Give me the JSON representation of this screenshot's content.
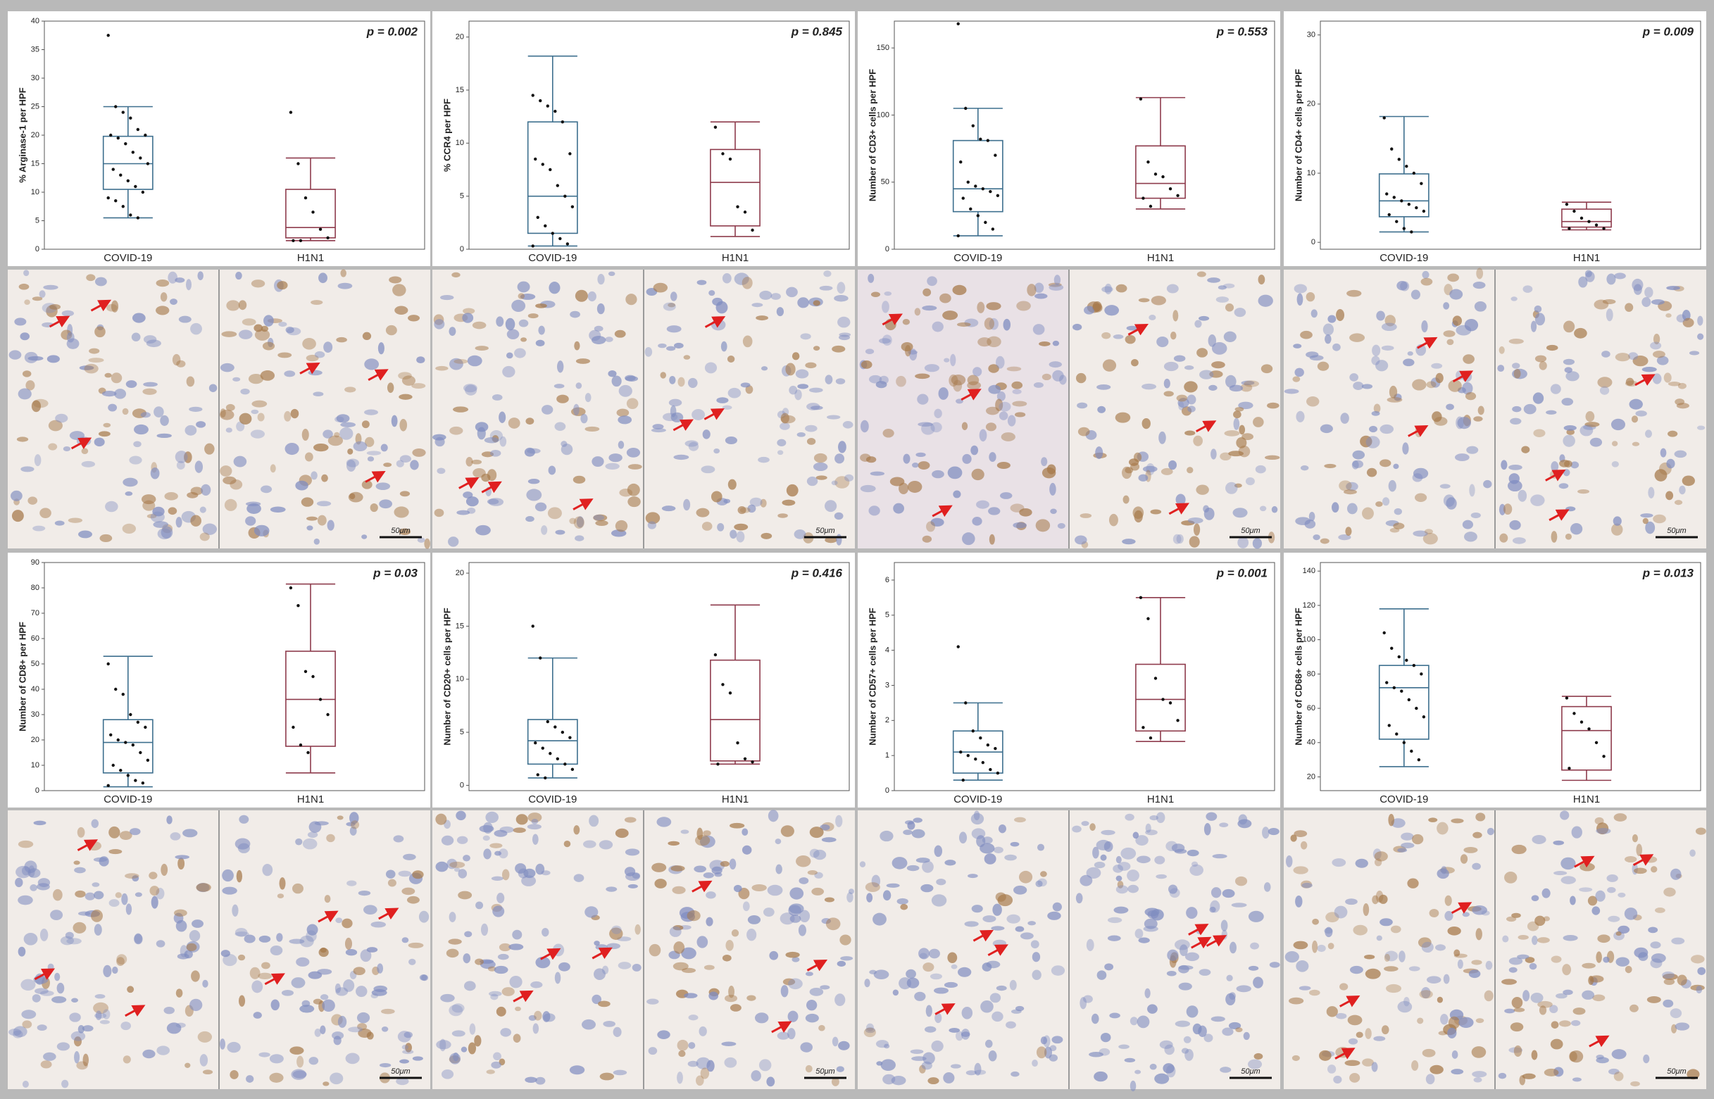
{
  "chart_data": [
    {
      "type": "box",
      "y_label": "% Arginase-1 per HPF",
      "annotation": "p = 0.002",
      "categories": [
        "COVID-19",
        "H1N1"
      ],
      "ylim": [
        0,
        40
      ],
      "yticks": [
        0,
        5,
        10,
        15,
        20,
        25,
        30,
        35,
        40
      ],
      "boxes": [
        {
          "color": "#3d6f8e",
          "min": 5.5,
          "q1": 10.5,
          "median": 15,
          "q3": 19.8,
          "max": 25,
          "points": [
            37.5,
            25,
            24,
            23,
            21,
            20,
            20,
            19.5,
            18.5,
            17,
            16,
            15,
            14,
            13,
            12,
            11,
            10,
            9,
            8.5,
            7.5,
            6,
            5.5
          ]
        },
        {
          "color": "#8e3b4c",
          "min": 1.5,
          "q1": 2,
          "median": 3.8,
          "q3": 10.5,
          "max": 16,
          "points": [
            24,
            15,
            9,
            6.5,
            3.5,
            2,
            1.5,
            1.5
          ]
        }
      ]
    },
    {
      "type": "box",
      "y_label": "% CCR4 per HPF",
      "annotation": "p = 0.845",
      "categories": [
        "COVID-19",
        "H1N1"
      ],
      "ylim": [
        0,
        21.5
      ],
      "yticks": [
        0,
        5,
        10,
        15,
        20
      ],
      "boxes": [
        {
          "color": "#3d6f8e",
          "min": 0.3,
          "q1": 1.5,
          "median": 5,
          "q3": 12,
          "max": 18.2,
          "points": [
            14.5,
            14,
            13.5,
            13,
            12,
            9,
            8.5,
            8,
            7.5,
            6,
            5,
            4,
            3,
            2.2,
            1.5,
            1,
            0.5,
            0.3
          ]
        },
        {
          "color": "#8e3b4c",
          "min": 1.2,
          "q1": 2.2,
          "median": 6.3,
          "q3": 9.4,
          "max": 12,
          "points": [
            11.5,
            9,
            8.5,
            4,
            3.5,
            1.8
          ]
        }
      ]
    },
    {
      "type": "box",
      "y_label": "Number of CD3+ cells per HPF",
      "annotation": "p = 0.553",
      "categories": [
        "COVID-19",
        "H1N1"
      ],
      "ylim": [
        0,
        170
      ],
      "yticks": [
        0,
        50,
        100,
        150
      ],
      "boxes": [
        {
          "color": "#3d6f8e",
          "min": 10,
          "q1": 28,
          "median": 45,
          "q3": 81,
          "max": 105,
          "points": [
            168,
            105,
            92,
            82,
            81,
            70,
            65,
            50,
            47,
            45,
            43,
            40,
            38,
            30,
            25,
            20,
            15,
            10
          ]
        },
        {
          "color": "#8e3b4c",
          "min": 30,
          "q1": 38,
          "median": 49,
          "q3": 77,
          "max": 113,
          "points": [
            112,
            65,
            56,
            54,
            45,
            40,
            38,
            32
          ]
        }
      ]
    },
    {
      "type": "box",
      "y_label": "Number of CD4+ cells per HPF",
      "annotation": "p = 0.009",
      "categories": [
        "COVID-19",
        "H1N1"
      ],
      "ylim": [
        -1,
        32
      ],
      "yticks": [
        0,
        10,
        20,
        30
      ],
      "boxes": [
        {
          "color": "#3d6f8e",
          "min": 1.5,
          "q1": 3.7,
          "median": 6,
          "q3": 9.9,
          "max": 18.2,
          "points": [
            18,
            13.5,
            12,
            11,
            10,
            8.5,
            7,
            6.5,
            6,
            5.5,
            5,
            4.5,
            4,
            3,
            2,
            1.5
          ]
        },
        {
          "color": "#8e3b4c",
          "min": 1.8,
          "q1": 2.2,
          "median": 3,
          "q3": 4.8,
          "max": 5.8,
          "points": [
            5.5,
            4.5,
            3.5,
            3,
            2.5,
            2,
            2
          ]
        }
      ]
    },
    {
      "type": "box",
      "y_label": "Number of CD8+ per HPF",
      "annotation": "p = 0.03",
      "categories": [
        "COVID-19",
        "H1N1"
      ],
      "ylim": [
        0,
        90
      ],
      "yticks": [
        0,
        10,
        20,
        30,
        40,
        50,
        60,
        70,
        80,
        90
      ],
      "boxes": [
        {
          "color": "#3d6f8e",
          "min": 1.5,
          "q1": 7,
          "median": 19,
          "q3": 28,
          "max": 53,
          "points": [
            50,
            40,
            38,
            30,
            27,
            25,
            22,
            20,
            19,
            18,
            15,
            12,
            10,
            8,
            6,
            4,
            3,
            2
          ]
        },
        {
          "color": "#8e3b4c",
          "min": 7,
          "q1": 17.5,
          "median": 36,
          "q3": 55,
          "max": 81.5,
          "points": [
            80,
            73,
            47,
            45,
            36,
            30,
            25,
            18,
            15
          ]
        }
      ]
    },
    {
      "type": "box",
      "y_label": "Number of CD20+ cells per HPF",
      "annotation": "p = 0.416",
      "categories": [
        "COVID-19",
        "H1N1"
      ],
      "ylim": [
        -0.5,
        21
      ],
      "yticks": [
        0,
        5,
        10,
        15,
        20
      ],
      "boxes": [
        {
          "color": "#3d6f8e",
          "min": 0.7,
          "q1": 2,
          "median": 4.2,
          "q3": 6.2,
          "max": 12,
          "points": [
            15,
            12,
            6,
            5.5,
            5,
            4.5,
            4,
            3.5,
            3,
            2.5,
            2,
            1.5,
            1,
            0.7
          ]
        },
        {
          "color": "#8e3b4c",
          "min": 2,
          "q1": 2.3,
          "median": 6.2,
          "q3": 11.8,
          "max": 17,
          "points": [
            12.3,
            9.5,
            8.7,
            4,
            2.5,
            2.2,
            2
          ]
        }
      ]
    },
    {
      "type": "box",
      "y_label": "Number of CD57+ cells per HPF",
      "annotation": "p = 0.001",
      "categories": [
        "COVID-19",
        "H1N1"
      ],
      "ylim": [
        0,
        6.5
      ],
      "yticks": [
        0,
        1,
        2,
        3,
        4,
        5,
        6
      ],
      "boxes": [
        {
          "color": "#3d6f8e",
          "min": 0.3,
          "q1": 0.5,
          "median": 1.1,
          "q3": 1.7,
          "max": 2.5,
          "points": [
            4.1,
            2.5,
            1.7,
            1.5,
            1.3,
            1.2,
            1.1,
            1,
            0.9,
            0.8,
            0.6,
            0.5,
            0.3
          ]
        },
        {
          "color": "#8e3b4c",
          "min": 1.4,
          "q1": 1.7,
          "median": 2.6,
          "q3": 3.6,
          "max": 5.5,
          "points": [
            5.5,
            4.9,
            3.2,
            2.6,
            2.5,
            2,
            1.8,
            1.5
          ]
        }
      ]
    },
    {
      "type": "box",
      "y_label": "Number of CD68+ cells per HPF",
      "annotation": "p = 0.013",
      "categories": [
        "COVID-19",
        "H1N1"
      ],
      "ylim": [
        12,
        145
      ],
      "yticks": [
        20,
        40,
        60,
        80,
        100,
        120,
        140
      ],
      "boxes": [
        {
          "color": "#3d6f8e",
          "min": 26,
          "q1": 42,
          "median": 72,
          "q3": 85,
          "max": 118,
          "points": [
            104,
            95,
            90,
            88,
            85,
            80,
            75,
            72,
            70,
            65,
            60,
            55,
            50,
            45,
            40,
            35,
            30
          ]
        },
        {
          "color": "#8e3b4c",
          "min": 18,
          "q1": 24,
          "median": 47,
          "q3": 61,
          "max": 67,
          "points": [
            66,
            57,
            52,
            48,
            40,
            32,
            25
          ]
        }
      ]
    }
  ],
  "micrographs": [
    {
      "scale_bar": "50μm"
    },
    {
      "scale_bar": "50μm"
    },
    {
      "scale_bar": "50μm"
    },
    {
      "scale_bar": "50μm"
    },
    {
      "scale_bar": "50μm"
    },
    {
      "scale_bar": "50μm"
    },
    {
      "scale_bar": "50μm"
    },
    {
      "scale_bar": "50μm"
    }
  ]
}
